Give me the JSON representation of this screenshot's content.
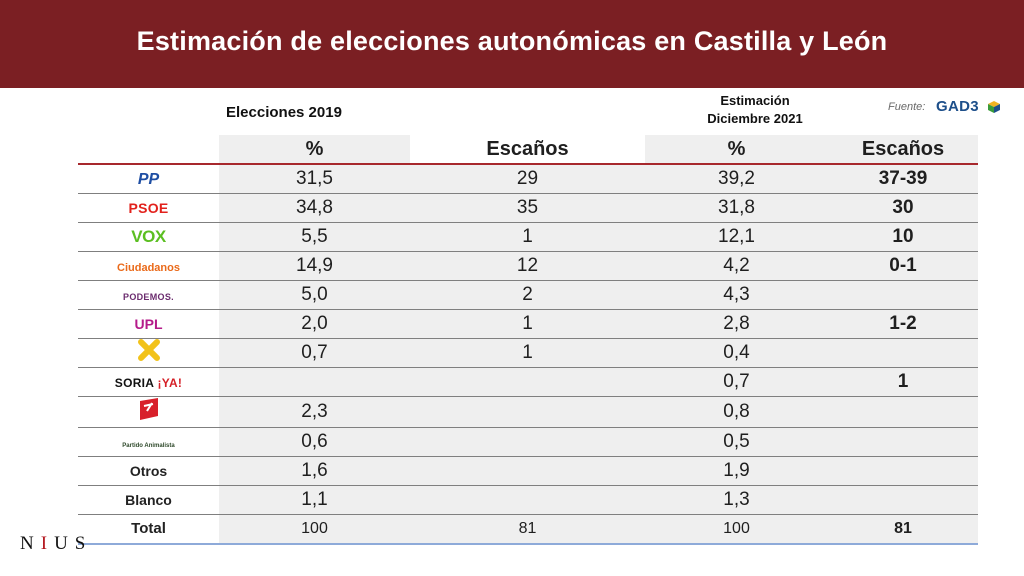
{
  "title": "Estimación de elecciones autonómicas en Castilla y León",
  "header": {
    "group_2019": "Elecciones 2019",
    "group_estimate_line1": "Estimación",
    "group_estimate_line2": "Diciembre 2021",
    "source_label": "Fuente:",
    "source_name": "GAD3"
  },
  "columns": [
    "%",
    "Escaños",
    "%",
    "Escaños"
  ],
  "colors": {
    "banner": "#7b1f23",
    "header_rule": "#a7282d",
    "total_rule": "#8eaad9",
    "cell_shade": "#efefef"
  },
  "chart_data": {
    "type": "table",
    "title": "Estimación de elecciones autonómicas en Castilla y León",
    "column_groups": [
      "Elecciones 2019",
      "Estimación Diciembre 2021"
    ],
    "columns": [
      "%",
      "Escaños",
      "%",
      "Escaños"
    ],
    "rows": [
      {
        "party": "PP",
        "logo_text": "PP",
        "pct_2019": "31,5",
        "seats_2019": "29",
        "pct_2021": "39,2",
        "seats_2021": "37-39"
      },
      {
        "party": "PSOE",
        "logo_text": "PSOE",
        "pct_2019": "34,8",
        "seats_2019": "35",
        "pct_2021": "31,8",
        "seats_2021": "30"
      },
      {
        "party": "VOX",
        "logo_text": "VOX",
        "pct_2019": "5,5",
        "seats_2019": "1",
        "pct_2021": "12,1",
        "seats_2021": "10"
      },
      {
        "party": "Ciudadanos",
        "logo_text": "Ciudadanos",
        "pct_2019": "14,9",
        "seats_2019": "12",
        "pct_2021": "4,2",
        "seats_2021": "0-1"
      },
      {
        "party": "Podemos",
        "logo_text": "PODEMOS.",
        "pct_2019": "5,0",
        "seats_2019": "2",
        "pct_2021": "4,3",
        "seats_2021": ""
      },
      {
        "party": "UPL",
        "logo_text": "UPL",
        "pct_2019": "2,0",
        "seats_2019": "1",
        "pct_2021": "2,8",
        "seats_2021": "1-2"
      },
      {
        "party": "Por Ávila",
        "logo_text": "",
        "pct_2019": "0,7",
        "seats_2019": "1",
        "pct_2021": "0,4",
        "seats_2021": ""
      },
      {
        "party": "Soria ¡Ya!",
        "logo_text": "SORIA ¡YA!",
        "pct_2019": "",
        "seats_2019": "",
        "pct_2021": "0,7",
        "seats_2021": "1"
      },
      {
        "party": "IU",
        "logo_text": "",
        "pct_2019": "2,3",
        "seats_2019": "",
        "pct_2021": "0,8",
        "seats_2021": ""
      },
      {
        "party": "PACMA",
        "logo_text": "Partido Animalista",
        "pct_2019": "0,6",
        "seats_2019": "",
        "pct_2021": "0,5",
        "seats_2021": ""
      },
      {
        "party": "Otros",
        "logo_text": "Otros",
        "pct_2019": "1,6",
        "seats_2019": "",
        "pct_2021": "1,9",
        "seats_2021": ""
      },
      {
        "party": "Blanco",
        "logo_text": "Blanco",
        "pct_2019": "1,1",
        "seats_2019": "",
        "pct_2021": "1,3",
        "seats_2021": ""
      }
    ],
    "total": {
      "label": "Total",
      "pct_2019": "100",
      "seats_2019": "81",
      "pct_2021": "100",
      "seats_2021": "81"
    }
  },
  "footer": {
    "brand": "NIUS"
  }
}
